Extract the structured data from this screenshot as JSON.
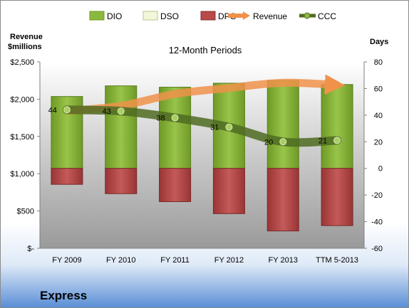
{
  "company": "Express",
  "chart_data": {
    "type": "bar",
    "title": "12-Month Periods",
    "categories": [
      "FY 2009",
      "FY 2010",
      "FY 2011",
      "FY 2012",
      "FY 2013",
      "TTM 5-2013"
    ],
    "left_axis": {
      "title_line1": "Revenue",
      "title_line2": "$millions",
      "ylim": [
        0,
        2500
      ],
      "ticks": [
        0,
        500,
        1000,
        1500,
        2000,
        2500
      ],
      "tick_labels": [
        "$-",
        "$500",
        "$1,000",
        "$1,500",
        "$2,000",
        "$2,500"
      ]
    },
    "right_axis": {
      "title": "Days",
      "ylim": [
        -60,
        80
      ],
      "ticks": [
        -60,
        -40,
        -20,
        0,
        20,
        40,
        60,
        80
      ],
      "tick_labels": [
        "-60",
        "-40",
        "-20",
        "0",
        "20",
        "40",
        "60",
        "80"
      ]
    },
    "series": [
      {
        "name": "DIO",
        "type": "bar",
        "axis": "right",
        "color": "#8db83f",
        "values": [
          54,
          62,
          61,
          64,
          66,
          63
        ]
      },
      {
        "name": "DSO",
        "type": "bar",
        "axis": "right",
        "color": "#f2f7dc",
        "values": [
          0,
          0,
          0,
          0,
          0,
          0
        ]
      },
      {
        "name": "DPO",
        "type": "bar",
        "axis": "right",
        "color": "#b84a4a",
        "values": [
          -12,
          -19,
          -25,
          -34,
          -47,
          -43
        ]
      },
      {
        "name": "Revenue",
        "type": "line",
        "axis": "left",
        "color": "#f0924a",
        "values": [
          1840,
          1910,
          2070,
          2150,
          2220,
          2190
        ]
      },
      {
        "name": "CCC",
        "type": "line",
        "axis": "right",
        "color": "#4f6b22",
        "values": [
          44,
          43,
          38,
          31,
          20,
          21
        ]
      }
    ],
    "legend": "top",
    "grid": false
  }
}
